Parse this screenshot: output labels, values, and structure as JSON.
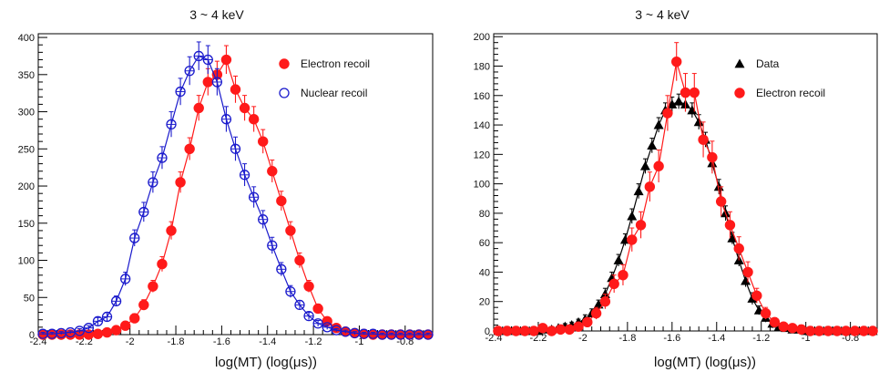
{
  "chart_data": [
    {
      "type": "scatter",
      "title": "3 ~ 4 keV",
      "xlabel": "log(MT) (log(μs))",
      "ylabel": "",
      "xlim": [
        -2.4,
        -0.68
      ],
      "ylim": [
        0,
        405
      ],
      "xticks": [
        "-2.4",
        "-2.2",
        "-2",
        "-1.8",
        "-1.6",
        "-1.4",
        "-1.2",
        "-1",
        "-0.8"
      ],
      "yticks": [
        "0",
        "50",
        "100",
        "150",
        "200",
        "250",
        "300",
        "350",
        "400"
      ],
      "legend_position": "top-right",
      "grid": false,
      "series": [
        {
          "name": "Electron recoil",
          "color": "#ff1a1a",
          "marker": "filled-circle",
          "x": [
            -2.38,
            -2.34,
            -2.3,
            -2.26,
            -2.22,
            -2.18,
            -2.14,
            -2.1,
            -2.06,
            -2.02,
            -1.98,
            -1.94,
            -1.9,
            -1.86,
            -1.82,
            -1.78,
            -1.74,
            -1.7,
            -1.66,
            -1.62,
            -1.58,
            -1.54,
            -1.5,
            -1.46,
            -1.42,
            -1.38,
            -1.34,
            -1.3,
            -1.26,
            -1.22,
            -1.18,
            -1.14,
            -1.1,
            -1.06,
            -1.02,
            -0.98,
            -0.94,
            -0.9,
            -0.86,
            -0.82,
            -0.78,
            -0.74,
            -0.7
          ],
          "y": [
            0,
            0,
            0,
            0,
            0,
            0,
            1,
            3,
            6,
            12,
            22,
            40,
            65,
            95,
            140,
            205,
            250,
            305,
            340,
            350,
            370,
            330,
            305,
            290,
            260,
            220,
            180,
            140,
            100,
            65,
            35,
            18,
            9,
            4,
            2,
            1,
            0,
            0,
            0,
            0,
            0,
            0,
            0
          ],
          "yerr": [
            2,
            2,
            2,
            2,
            2,
            2,
            2,
            3,
            4,
            5,
            6,
            7,
            8,
            10,
            12,
            14,
            15,
            17,
            18,
            18,
            19,
            18,
            17,
            17,
            16,
            15,
            13,
            12,
            10,
            8,
            6,
            4,
            3,
            2,
            2,
            2,
            2,
            2,
            2,
            2,
            2,
            2,
            2
          ]
        },
        {
          "name": "Nuclear recoil",
          "color": "#1a1acc",
          "marker": "open-circle",
          "x": [
            -2.38,
            -2.34,
            -2.3,
            -2.26,
            -2.22,
            -2.18,
            -2.14,
            -2.1,
            -2.06,
            -2.02,
            -1.98,
            -1.94,
            -1.9,
            -1.86,
            -1.82,
            -1.78,
            -1.74,
            -1.7,
            -1.66,
            -1.62,
            -1.58,
            -1.54,
            -1.5,
            -1.46,
            -1.42,
            -1.38,
            -1.34,
            -1.3,
            -1.26,
            -1.22,
            -1.18,
            -1.14,
            -1.1,
            -1.06,
            -1.02,
            -0.98,
            -0.94,
            -0.9,
            -0.86,
            -0.82,
            -0.78,
            -0.74,
            -0.7
          ],
          "y": [
            1,
            1,
            2,
            3,
            5,
            9,
            18,
            24,
            45,
            75,
            130,
            165,
            205,
            238,
            283,
            327,
            355,
            375,
            370,
            340,
            290,
            250,
            215,
            185,
            155,
            120,
            88,
            58,
            40,
            25,
            15,
            10,
            6,
            4,
            2,
            1,
            1,
            0,
            0,
            0,
            0,
            0,
            0
          ],
          "yerr": [
            2,
            2,
            2,
            2,
            3,
            3,
            5,
            6,
            7,
            9,
            11,
            13,
            14,
            15,
            17,
            18,
            19,
            19,
            19,
            18,
            17,
            16,
            15,
            14,
            12,
            11,
            9,
            8,
            6,
            5,
            4,
            3,
            2,
            2,
            2,
            2,
            2,
            2,
            2,
            2,
            2,
            2,
            2
          ]
        }
      ]
    },
    {
      "type": "scatter",
      "title": "3 ~ 4 keV",
      "xlabel": "log(MT) (log(μs))",
      "ylabel": "",
      "xlim": [
        -2.4,
        -0.68
      ],
      "ylim": [
        0,
        202
      ],
      "xticks": [
        "-2.4",
        "-2.2",
        "-2",
        "-1.8",
        "-1.6",
        "-1.4",
        "-1.2",
        "-1",
        "-0.8"
      ],
      "yticks": [
        "0",
        "20",
        "40",
        "60",
        "80",
        "100",
        "120",
        "140",
        "160",
        "180",
        "200"
      ],
      "legend_position": "top-right",
      "grid": false,
      "series": [
        {
          "name": "Data",
          "color": "#000000",
          "marker": "filled-triangle",
          "x": [
            -2.38,
            -2.35,
            -2.32,
            -2.29,
            -2.26,
            -2.23,
            -2.2,
            -2.17,
            -2.14,
            -2.11,
            -2.08,
            -2.05,
            -2.02,
            -1.99,
            -1.96,
            -1.93,
            -1.9,
            -1.87,
            -1.84,
            -1.81,
            -1.78,
            -1.75,
            -1.72,
            -1.69,
            -1.66,
            -1.63,
            -1.6,
            -1.57,
            -1.54,
            -1.51,
            -1.48,
            -1.45,
            -1.42,
            -1.39,
            -1.36,
            -1.33,
            -1.3,
            -1.27,
            -1.24,
            -1.21,
            -1.18,
            -1.15,
            -1.12,
            -1.09,
            -1.06,
            -1.03,
            -1.0,
            -0.97,
            -0.94,
            -0.91,
            -0.88,
            -0.85,
            -0.82,
            -0.79,
            -0.76,
            -0.73,
            -0.7
          ],
          "y": [
            0,
            0,
            0,
            0,
            0,
            0,
            0,
            1,
            1,
            2,
            3,
            4,
            6,
            8,
            12,
            18,
            25,
            36,
            48,
            62,
            78,
            95,
            112,
            126,
            140,
            150,
            154,
            156,
            154,
            150,
            142,
            130,
            114,
            98,
            80,
            63,
            48,
            34,
            22,
            14,
            9,
            5,
            3,
            2,
            1,
            1,
            0,
            0,
            0,
            0,
            0,
            0,
            0,
            0,
            0,
            0,
            0
          ],
          "yerr": [
            1,
            1,
            1,
            1,
            1,
            1,
            1,
            1,
            1,
            1,
            2,
            2,
            2,
            3,
            3,
            3,
            4,
            4,
            4,
            4,
            5,
            5,
            5,
            5,
            5,
            5,
            5,
            5,
            5,
            5,
            5,
            5,
            5,
            5,
            5,
            4,
            4,
            4,
            4,
            3,
            3,
            3,
            2,
            2,
            1,
            1,
            1,
            1,
            1,
            1,
            1,
            1,
            1,
            1,
            1,
            1,
            1
          ]
        },
        {
          "name": "Electron recoil",
          "color": "#ff1a1a",
          "marker": "filled-circle",
          "x": [
            -2.38,
            -2.34,
            -2.3,
            -2.26,
            -2.22,
            -2.18,
            -2.14,
            -2.1,
            -2.06,
            -2.02,
            -1.98,
            -1.94,
            -1.9,
            -1.86,
            -1.82,
            -1.78,
            -1.74,
            -1.7,
            -1.66,
            -1.62,
            -1.58,
            -1.54,
            -1.5,
            -1.46,
            -1.42,
            -1.38,
            -1.34,
            -1.3,
            -1.26,
            -1.22,
            -1.18,
            -1.14,
            -1.1,
            -1.06,
            -1.02,
            -0.98,
            -0.94,
            -0.9,
            -0.86,
            -0.82,
            -0.78,
            -0.74,
            -0.7
          ],
          "y": [
            0,
            0,
            0,
            0,
            0,
            2,
            0,
            1,
            1,
            3,
            6,
            12,
            20,
            32,
            38,
            62,
            72,
            98,
            112,
            148,
            183,
            162,
            162,
            130,
            118,
            88,
            72,
            56,
            40,
            24,
            12,
            6,
            3,
            2,
            1,
            0,
            0,
            0,
            0,
            0,
            0,
            0,
            0
          ],
          "yerr": [
            1,
            1,
            1,
            1,
            1,
            2,
            1,
            1,
            1,
            2,
            3,
            4,
            5,
            6,
            7,
            8,
            9,
            10,
            11,
            12,
            13,
            13,
            13,
            12,
            11,
            10,
            9,
            8,
            7,
            5,
            4,
            3,
            2,
            2,
            1,
            1,
            1,
            1,
            1,
            1,
            1,
            1,
            1
          ]
        }
      ]
    }
  ]
}
